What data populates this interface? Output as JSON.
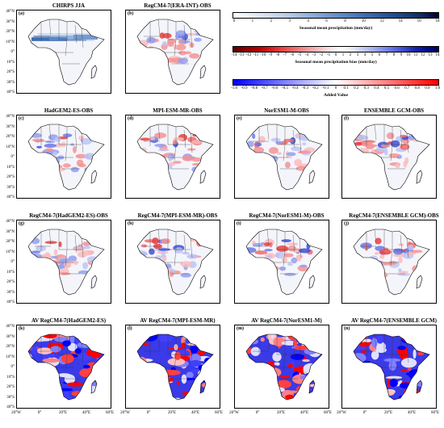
{
  "panels": [
    {
      "label": "(a)",
      "title": "CHIRPS  JJA",
      "kind": "obs"
    },
    {
      "label": "(b)",
      "title": "RegCM4-7(ERA-INT)-OBS",
      "kind": "bias"
    },
    {
      "label": "(c)",
      "title": "HadGEM2-ES-OBS",
      "kind": "bias"
    },
    {
      "label": "(d)",
      "title": "MPI-ESM-MR-OBS",
      "kind": "bias"
    },
    {
      "label": "(e)",
      "title": "NorESM1-M-OBS",
      "kind": "bias"
    },
    {
      "label": "(f)",
      "title": "ENSEMBLE  GCM-OBS",
      "kind": "bias"
    },
    {
      "label": "(g)",
      "title": "RegCM4-7(HadGEM2-ES)-OBS",
      "kind": "bias"
    },
    {
      "label": "(h)",
      "title": "RegCM4-7(MPI-ESM-MR)-OBS",
      "kind": "bias"
    },
    {
      "label": "(i)",
      "title": "RegCM4-7(NorESM1-M)-OBS",
      "kind": "bias"
    },
    {
      "label": "(j)",
      "title": "RegCM4-7(ENSEMBLE  GCM)-OBS",
      "kind": "bias"
    },
    {
      "label": "(k)",
      "title": "AV  RegCM4-7(HadGEM2-ES)",
      "kind": "av"
    },
    {
      "label": "(l)",
      "title": "AV  RegCM4-7(MPI-ESM-MR)",
      "kind": "av"
    },
    {
      "label": "(m)",
      "title": "AV  RegCM4-7(NorESM1-M)",
      "kind": "av"
    },
    {
      "label": "(n)",
      "title": "AV  RegCM4-7(ENSEMBLE  GCM)",
      "kind": "av"
    }
  ],
  "lat_ticks": [
    "40°N",
    "30°N",
    "20°N",
    "10°N",
    "0°",
    "10°S",
    "20°S",
    "30°S",
    "40°S"
  ],
  "lon_ticks": [
    "20°W",
    "0°",
    "20°E",
    "40°E",
    "60°E"
  ],
  "colorbars": [
    {
      "name": "precip",
      "title": "Seasonal mean precipitation (mm/day)",
      "ticks": [
        "0",
        "1",
        "2",
        "3",
        "4",
        "6",
        "8",
        "10",
        "12",
        "14",
        "16",
        "18"
      ],
      "colors": [
        "#ffffff",
        "#e6eef8",
        "#cfdcf0",
        "#b5cae8",
        "#95b3dc",
        "#749bd0",
        "#5a86c4",
        "#3f6fb5",
        "#2a59a0",
        "#1a4588",
        "#0f2f66",
        "#000033"
      ]
    },
    {
      "name": "bias",
      "title": "Seasonal mean precipitation bias (mm/day)",
      "ticks": [
        "-14",
        "-13",
        "-12",
        "-11",
        "-10",
        "-9",
        "-8",
        "-7",
        "-6",
        "-5",
        "-4",
        "-3",
        "-2",
        "-1",
        "0",
        "1",
        "2",
        "3",
        "4",
        "5",
        "6",
        "7",
        "8",
        "9",
        "10",
        "11",
        "12",
        "13",
        "14"
      ],
      "colors": [
        "#5a0000",
        "#8b0000",
        "#b00000",
        "#d41a1a",
        "#e84040",
        "#f06a6a",
        "#f59393",
        "#f9bcbc",
        "#fde2e2",
        "#ffffff",
        "#e2e6fb",
        "#bcc4f5",
        "#939ff0",
        "#6a78e8",
        "#4050d4",
        "#1a28b0",
        "#000e8b",
        "#00005a"
      ]
    },
    {
      "name": "av",
      "title": "Added Value",
      "ticks": [
        "-1.0",
        "-0.9",
        "-0.8",
        "-0.7",
        "-0.6",
        "-0.5",
        "-0.4",
        "-0.3",
        "-0.2",
        "-0.1",
        "0",
        "0.1",
        "0.2",
        "0.3",
        "0.4",
        "0.5",
        "0.6",
        "0.7",
        "0.8",
        "0.9",
        "1.0"
      ],
      "colors": [
        "#0000ff",
        "#2020ff",
        "#4040ff",
        "#6060ff",
        "#8080ff",
        "#a0a0ff",
        "#c0c0ff",
        "#e0e0ff",
        "#ffffff",
        "#ffe0e0",
        "#ffc0c0",
        "#ffa0a0",
        "#ff8080",
        "#ff6060",
        "#ff4040",
        "#ff2020",
        "#ff0000"
      ]
    }
  ]
}
